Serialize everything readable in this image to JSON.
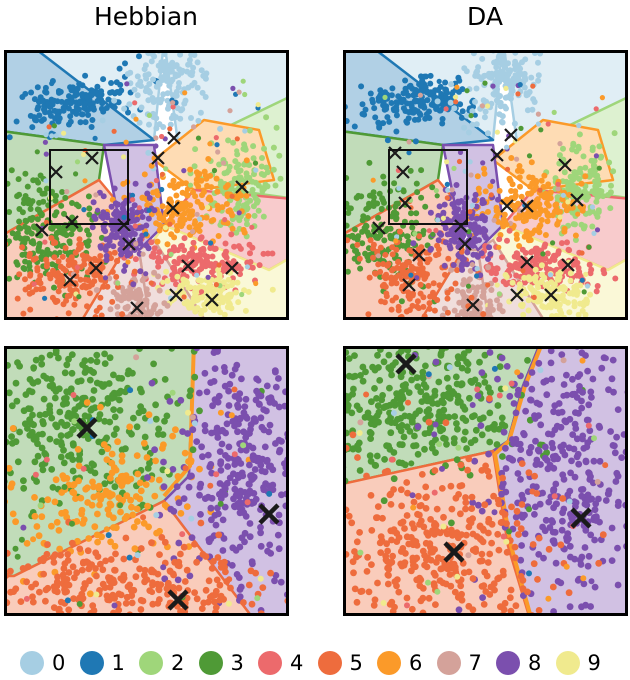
{
  "titles": {
    "left": "Hebbian",
    "right": "DA"
  },
  "legend": [
    {
      "label": "0",
      "color": "#a6cee3"
    },
    {
      "label": "1",
      "color": "#1f78b4"
    },
    {
      "label": "2",
      "color": "#9fd67a"
    },
    {
      "label": "3",
      "color": "#4f9a36"
    },
    {
      "label": "4",
      "color": "#ec6a6c"
    },
    {
      "label": "5",
      "color": "#ee6c3d"
    },
    {
      "label": "6",
      "color": "#fb9a29"
    },
    {
      "label": "7",
      "color": "#d4a29a"
    },
    {
      "label": "8",
      "color": "#7b4fae"
    },
    {
      "label": "9",
      "color": "#f0ea8e"
    }
  ],
  "marker": "×"
}
